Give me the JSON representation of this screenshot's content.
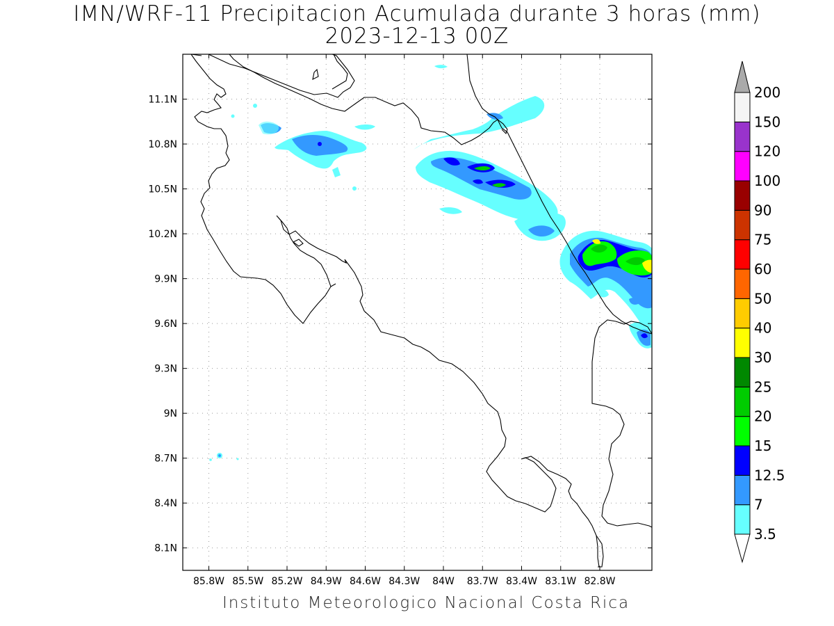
{
  "title": {
    "line1": "IMN/WRF-11 Precipitacion Acumulada durante 3 horas (mm)",
    "line2": "2023-12-13 00Z"
  },
  "footer": "Instituto Meteorologico Nacional Costa Rica",
  "map": {
    "lon_range": [
      -86.0,
      -82.4
    ],
    "lat_range": [
      7.95,
      11.4
    ],
    "lon_ticks": [
      {
        "value": -85.8,
        "label": "85.8W"
      },
      {
        "value": -85.5,
        "label": "85.5W"
      },
      {
        "value": -85.2,
        "label": "85.2W"
      },
      {
        "value": -84.9,
        "label": "84.9W"
      },
      {
        "value": -84.6,
        "label": "84.6W"
      },
      {
        "value": -84.3,
        "label": "84.3W"
      },
      {
        "value": -84.0,
        "label": "84W"
      },
      {
        "value": -83.7,
        "label": "83.7W"
      },
      {
        "value": -83.4,
        "label": "83.4W"
      },
      {
        "value": -83.1,
        "label": "83.1W"
      },
      {
        "value": -82.8,
        "label": "82.8W"
      }
    ],
    "lat_ticks": [
      {
        "value": 11.1,
        "label": "11.1N"
      },
      {
        "value": 10.8,
        "label": "10.8N"
      },
      {
        "value": 10.5,
        "label": "10.5N"
      },
      {
        "value": 10.2,
        "label": "10.2N"
      },
      {
        "value": 9.9,
        "label": "9.9N"
      },
      {
        "value": 9.6,
        "label": "9.6N"
      },
      {
        "value": 9.3,
        "label": "9.3N"
      },
      {
        "value": 9.0,
        "label": "9N"
      },
      {
        "value": 8.7,
        "label": "8.7N"
      },
      {
        "value": 8.4,
        "label": "8.4N"
      },
      {
        "value": 8.1,
        "label": "8.1N"
      }
    ],
    "grid": true
  },
  "colorbar": {
    "levels": [
      {
        "label": "3.5",
        "color": "#66ffff"
      },
      {
        "label": "7",
        "color": "#3399ff"
      },
      {
        "label": "12.5",
        "color": "#0000ff"
      },
      {
        "label": "15",
        "color": "#00ff00"
      },
      {
        "label": "20",
        "color": "#00cc00"
      },
      {
        "label": "25",
        "color": "#008800"
      },
      {
        "label": "30",
        "color": "#ffff00"
      },
      {
        "label": "40",
        "color": "#ffcc00"
      },
      {
        "label": "50",
        "color": "#ff6600"
      },
      {
        "label": "60",
        "color": "#ff0000"
      },
      {
        "label": "75",
        "color": "#cc3300"
      },
      {
        "label": "90",
        "color": "#990000"
      },
      {
        "label": "100",
        "color": "#ff00ff"
      },
      {
        "label": "120",
        "color": "#9933cc"
      },
      {
        "label": "150",
        "color": "#f5f5f5"
      },
      {
        "label": "200",
        "color": "#aaaaaa"
      }
    ]
  }
}
